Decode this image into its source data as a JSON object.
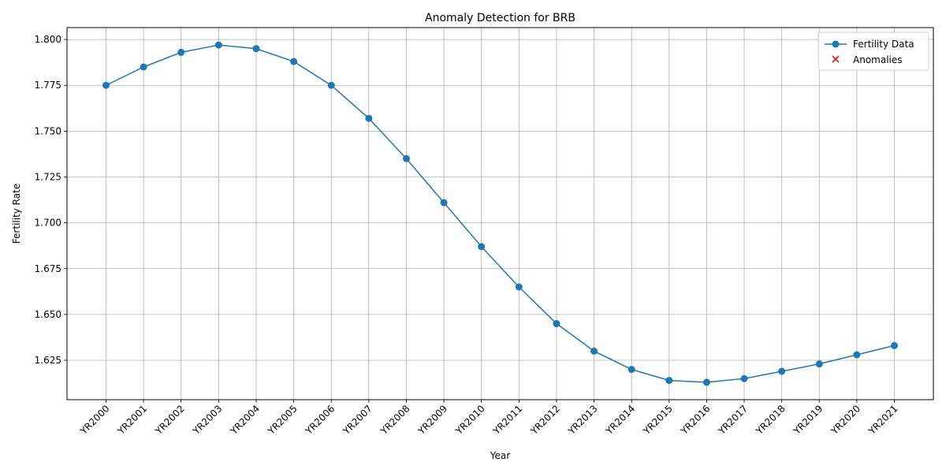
{
  "chart_data": {
    "type": "line",
    "title": "Anomaly Detection for BRB",
    "xlabel": "Year",
    "ylabel": "Fertility Rate",
    "categories": [
      "YR2000",
      "YR2001",
      "YR2002",
      "YR2003",
      "YR2004",
      "YR2005",
      "YR2006",
      "YR2007",
      "YR2008",
      "YR2009",
      "YR2010",
      "YR2011",
      "YR2012",
      "YR2013",
      "YR2014",
      "YR2015",
      "YR2016",
      "YR2017",
      "YR2018",
      "YR2019",
      "YR2020",
      "YR2021"
    ],
    "series": [
      {
        "name": "Fertility Data",
        "color": "#1f77b4",
        "values": [
          1.775,
          1.785,
          1.793,
          1.797,
          1.795,
          1.788,
          1.775,
          1.757,
          1.735,
          1.711,
          1.687,
          1.665,
          1.645,
          1.63,
          1.62,
          1.614,
          1.613,
          1.615,
          1.619,
          1.623,
          1.628,
          1.633
        ]
      }
    ],
    "anomalies": {
      "name": "Anomalies",
      "color": "#d62728",
      "marker": "x",
      "points": []
    },
    "ylim": [
      1.6035,
      1.8065
    ],
    "yticks": [
      "1.625",
      "1.650",
      "1.675",
      "1.700",
      "1.725",
      "1.750",
      "1.775",
      "1.800"
    ],
    "grid": true,
    "legend": "top-right"
  }
}
